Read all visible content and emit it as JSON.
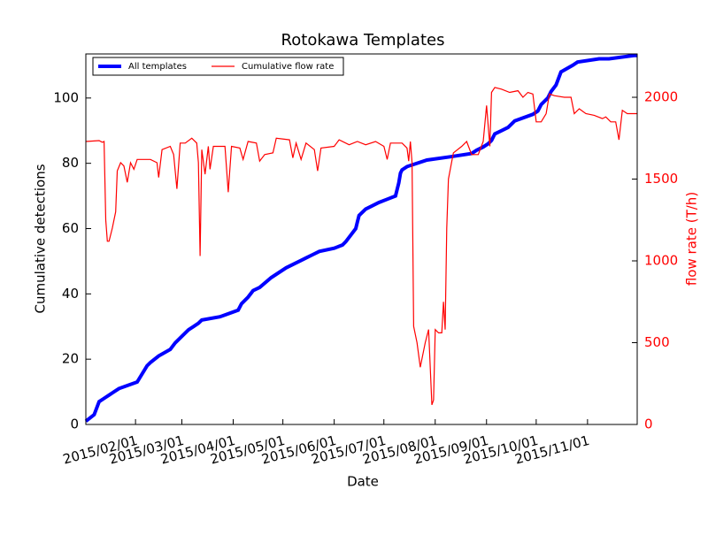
{
  "chart_data": {
    "type": "line",
    "title": "Rotokawa Templates",
    "xlabel": "Date",
    "ylabel": "Cumulative detections",
    "y2label": "flow rate (T/h)",
    "y2color": "#ff0000",
    "xlim": [
      "2015/01/02",
      "2015/12/01"
    ],
    "xticks": [
      "2015/02/01",
      "2015/03/01",
      "2015/04/01",
      "2015/05/01",
      "2015/06/01",
      "2015/07/01",
      "2015/08/01",
      "2015/09/01",
      "2015/10/01",
      "2015/11/01"
    ],
    "ylim": [
      0,
      113.5
    ],
    "yticks": [
      0,
      20,
      40,
      60,
      80,
      100
    ],
    "y2lim": [
      0,
      2265
    ],
    "y2ticks": [
      0,
      500,
      1000,
      1500,
      2000
    ],
    "legend": "upper left",
    "series": [
      {
        "name": "All templates",
        "color": "#0000ff",
        "width": 4,
        "axis": "y",
        "x": [
          "2015/01/02",
          "2015/01/07",
          "2015/01/10",
          "2015/01/13",
          "2015/01/16",
          "2015/01/22",
          "2015/02/02",
          "2015/02/08",
          "2015/02/10",
          "2015/02/15",
          "2015/02/22",
          "2015/02/25",
          "2015/03/03",
          "2015/03/05",
          "2015/03/08",
          "2015/03/11",
          "2015/03/13",
          "2015/03/24",
          "2015/04/04",
          "2015/04/06",
          "2015/04/10",
          "2015/04/13",
          "2015/04/17",
          "2015/04/24",
          "2015/05/03",
          "2015/05/11",
          "2015/05/15",
          "2015/05/19",
          "2015/05/23",
          "2015/06/01",
          "2015/06/06",
          "2015/06/08",
          "2015/06/14",
          "2015/06/15",
          "2015/06/16",
          "2015/06/20",
          "2015/06/24",
          "2015/06/28",
          "2015/07/03",
          "2015/07/08",
          "2015/07/10",
          "2015/07/11",
          "2015/07/12",
          "2015/07/15",
          "2015/07/27",
          "2015/08/10",
          "2015/08/23",
          "2015/08/26",
          "2015/08/30",
          "2015/09/02",
          "2015/09/04",
          "2015/09/06",
          "2015/09/10",
          "2015/09/14",
          "2015/09/18",
          "2015/09/29",
          "2015/10/02",
          "2015/10/04",
          "2015/10/08",
          "2015/10/10",
          "2015/10/13",
          "2015/10/16",
          "2015/10/23",
          "2015/10/26",
          "2015/11/08",
          "2015/11/14",
          "2015/11/29",
          "2015/12/01"
        ],
        "values": [
          1,
          3,
          7,
          8,
          9,
          11,
          13,
          18,
          19,
          21,
          23,
          25,
          28,
          29,
          30,
          31,
          32,
          33,
          35,
          37,
          39,
          41,
          42,
          45,
          48,
          50,
          51,
          52,
          53,
          54,
          55,
          56,
          60,
          62,
          64,
          66,
          67,
          68,
          69,
          70,
          74,
          77,
          78,
          79,
          81,
          82,
          83,
          84,
          85,
          86,
          87,
          89,
          90,
          91,
          93,
          95,
          96,
          98,
          100,
          102,
          104,
          108,
          110,
          111,
          112,
          112,
          113,
          113
        ]
      },
      {
        "name": "Cumulative flow rate",
        "color": "#ff0000",
        "width": 1.2,
        "axis": "y2",
        "x": [
          "2015/01/02",
          "2015/01/10",
          "2015/01/12",
          "2015/01/13",
          "2015/01/14",
          "2015/01/15",
          "2015/01/16",
          "2015/01/18",
          "2015/01/20",
          "2015/01/21",
          "2015/01/23",
          "2015/01/25",
          "2015/01/27",
          "2015/01/29",
          "2015/01/31",
          "2015/02/02",
          "2015/02/10",
          "2015/02/14",
          "2015/02/15",
          "2015/02/17",
          "2015/02/22",
          "2015/02/24",
          "2015/02/26",
          "2015/02/28",
          "2015/03/03",
          "2015/03/07",
          "2015/03/10",
          "2015/03/11",
          "2015/03/12",
          "2015/03/13",
          "2015/03/15",
          "2015/03/17",
          "2015/03/18",
          "2015/03/20",
          "2015/03/27",
          "2015/03/29",
          "2015/03/31",
          "2015/04/05",
          "2015/04/07",
          "2015/04/10",
          "2015/04/15",
          "2015/04/17",
          "2015/04/20",
          "2015/04/25",
          "2015/04/27",
          "2015/05/05",
          "2015/05/07",
          "2015/05/09",
          "2015/05/12",
          "2015/05/15",
          "2015/05/20",
          "2015/05/22",
          "2015/05/24",
          "2015/06/01",
          "2015/06/04",
          "2015/06/10",
          "2015/06/15",
          "2015/06/20",
          "2015/06/26",
          "2015/07/01",
          "2015/07/03",
          "2015/07/05",
          "2015/07/12",
          "2015/07/15",
          "2015/07/16",
          "2015/07/17",
          "2015/07/18",
          "2015/07/19",
          "2015/07/21",
          "2015/07/23",
          "2015/07/26",
          "2015/07/28",
          "2015/07/30",
          "2015/07/31",
          "2015/08/01",
          "2015/08/03",
          "2015/08/05",
          "2015/08/06",
          "2015/08/07",
          "2015/08/08",
          "2015/08/09",
          "2015/08/12",
          "2015/08/17",
          "2015/08/20",
          "2015/08/23",
          "2015/08/27",
          "2015/08/30",
          "2015/09/01",
          "2015/09/03",
          "2015/09/04",
          "2015/09/06",
          "2015/09/10",
          "2015/09/15",
          "2015/09/20",
          "2015/09/23",
          "2015/09/26",
          "2015/09/29",
          "2015/10/01",
          "2015/10/04",
          "2015/10/07",
          "2015/10/09",
          "2015/10/12",
          "2015/10/18",
          "2015/10/22",
          "2015/10/24",
          "2015/10/27",
          "2015/10/31",
          "2015/11/05",
          "2015/11/10",
          "2015/11/12",
          "2015/11/15",
          "2015/11/18",
          "2015/11/20",
          "2015/11/22",
          "2015/11/25",
          "2015/12/01"
        ],
        "values": [
          1730,
          1735,
          1725,
          1730,
          1250,
          1120,
          1120,
          1200,
          1300,
          1550,
          1600,
          1580,
          1480,
          1600,
          1560,
          1620,
          1620,
          1600,
          1510,
          1680,
          1700,
          1650,
          1440,
          1720,
          1720,
          1750,
          1720,
          1600,
          1030,
          1680,
          1530,
          1700,
          1560,
          1700,
          1700,
          1420,
          1700,
          1690,
          1620,
          1730,
          1720,
          1610,
          1650,
          1660,
          1750,
          1740,
          1630,
          1720,
          1620,
          1720,
          1680,
          1550,
          1690,
          1700,
          1740,
          1710,
          1730,
          1710,
          1730,
          1700,
          1620,
          1720,
          1720,
          1690,
          1610,
          1730,
          1600,
          600,
          500,
          350,
          500,
          580,
          120,
          150,
          580,
          560,
          560,
          750,
          580,
          1200,
          1500,
          1660,
          1700,
          1730,
          1650,
          1650,
          1730,
          1950,
          1700,
          2030,
          2060,
          2050,
          2030,
          2040,
          2000,
          2030,
          2020,
          1850,
          1850,
          1900,
          2020,
          2010,
          2000,
          2000,
          1900,
          1930,
          1900,
          1890,
          1870,
          1880,
          1850,
          1850,
          1740,
          1920,
          1900,
          1900
        ]
      }
    ]
  }
}
